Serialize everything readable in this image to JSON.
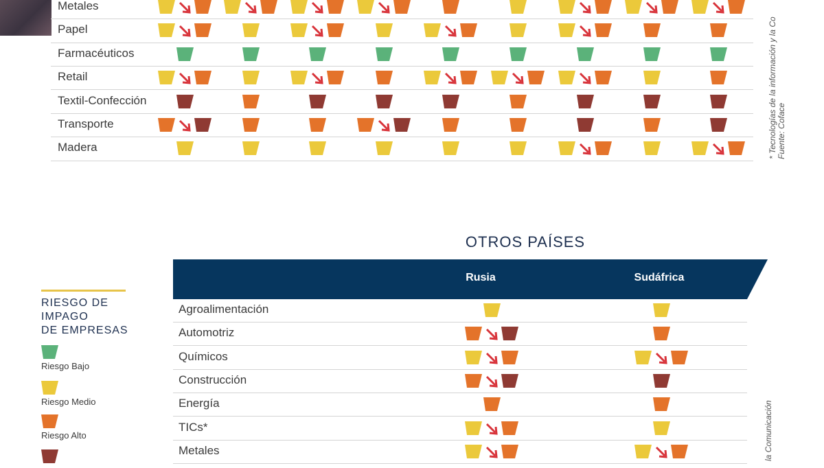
{
  "colors": {
    "bajo": "#5bb27a",
    "medio": "#ebc93b",
    "alto": "#e4732a",
    "muy_alto": "#8f3a33",
    "arrow": "#d8333a",
    "navy": "#06365e"
  },
  "chart_data": [
    {
      "type": "table",
      "title": "",
      "note": "cell values are risk levels: bajo, medio, alto, muy_alto; 'a>b' means downgrade from a to b",
      "columns": [
        "",
        "",
        "",
        "",
        "",
        "",
        "",
        "",
        ""
      ],
      "rows": [
        {
          "label": "Metales",
          "cells": [
            "medio>alto",
            "medio>alto",
            "medio>alto",
            "medio>alto",
            "alto",
            "medio",
            "medio>alto",
            "medio>alto",
            "medio>alto"
          ]
        },
        {
          "label": "Papel",
          "cells": [
            "medio>alto",
            "medio",
            "medio>alto",
            "medio",
            "medio>alto",
            "medio",
            "medio>alto",
            "alto",
            "alto"
          ]
        },
        {
          "label": "Farmacéuticos",
          "cells": [
            "bajo",
            "bajo",
            "bajo",
            "bajo",
            "bajo",
            "bajo",
            "bajo",
            "bajo",
            "bajo"
          ]
        },
        {
          "label": "Retail",
          "cells": [
            "medio>alto",
            "medio",
            "medio>alto",
            "alto",
            "medio>alto",
            "medio>alto",
            "medio>alto",
            "medio",
            "alto"
          ]
        },
        {
          "label": "Textil-Confección",
          "cells": [
            "muy_alto",
            "alto",
            "muy_alto",
            "muy_alto",
            "muy_alto",
            "alto",
            "muy_alto",
            "muy_alto",
            "muy_alto"
          ]
        },
        {
          "label": "Transporte",
          "cells": [
            "alto>muy_alto",
            "alto",
            "alto",
            "alto>muy_alto",
            "alto",
            "alto",
            "muy_alto",
            "alto",
            "muy_alto"
          ]
        },
        {
          "label": "Madera",
          "cells": [
            "medio",
            "medio",
            "medio",
            "medio",
            "medio",
            "medio",
            "medio>alto",
            "medio",
            "medio>alto"
          ]
        }
      ]
    },
    {
      "type": "table",
      "title": "OTROS PAÍSES",
      "note": "cell values are risk levels: bajo, medio, alto, muy_alto; 'a>b' means downgrade from a to b",
      "columns": [
        "Rusia",
        "Sudáfrica"
      ],
      "rows": [
        {
          "label": "Agroalimentación",
          "cells": [
            "medio",
            "medio"
          ]
        },
        {
          "label": "Automotriz",
          "cells": [
            "alto>muy_alto",
            "alto"
          ]
        },
        {
          "label": "Químicos",
          "cells": [
            "medio>alto",
            "medio>alto"
          ]
        },
        {
          "label": "Construcción",
          "cells": [
            "alto>muy_alto",
            "muy_alto"
          ]
        },
        {
          "label": "Energía",
          "cells": [
            "alto",
            "alto"
          ]
        },
        {
          "label": "TICs*",
          "cells": [
            "medio>alto",
            "medio"
          ]
        },
        {
          "label": "Metales",
          "cells": [
            "medio>alto",
            "medio>alto"
          ]
        }
      ]
    }
  ],
  "legend": {
    "title": "RIESGO DE\nIMPAGO\nDE EMPRESAS",
    "items": [
      {
        "level": "bajo",
        "label": "Riesgo Bajo"
      },
      {
        "level": "medio",
        "label": "Riesgo Medio"
      },
      {
        "level": "alto",
        "label": "Riesgo Alto"
      },
      {
        "level": "muy_alto",
        "label": ""
      }
    ]
  },
  "footnotes": {
    "top_line1": "* Tecnologías de la información y la Co",
    "top_line2": "Fuente: Coface",
    "bottom_line1": "la Comunicación"
  }
}
